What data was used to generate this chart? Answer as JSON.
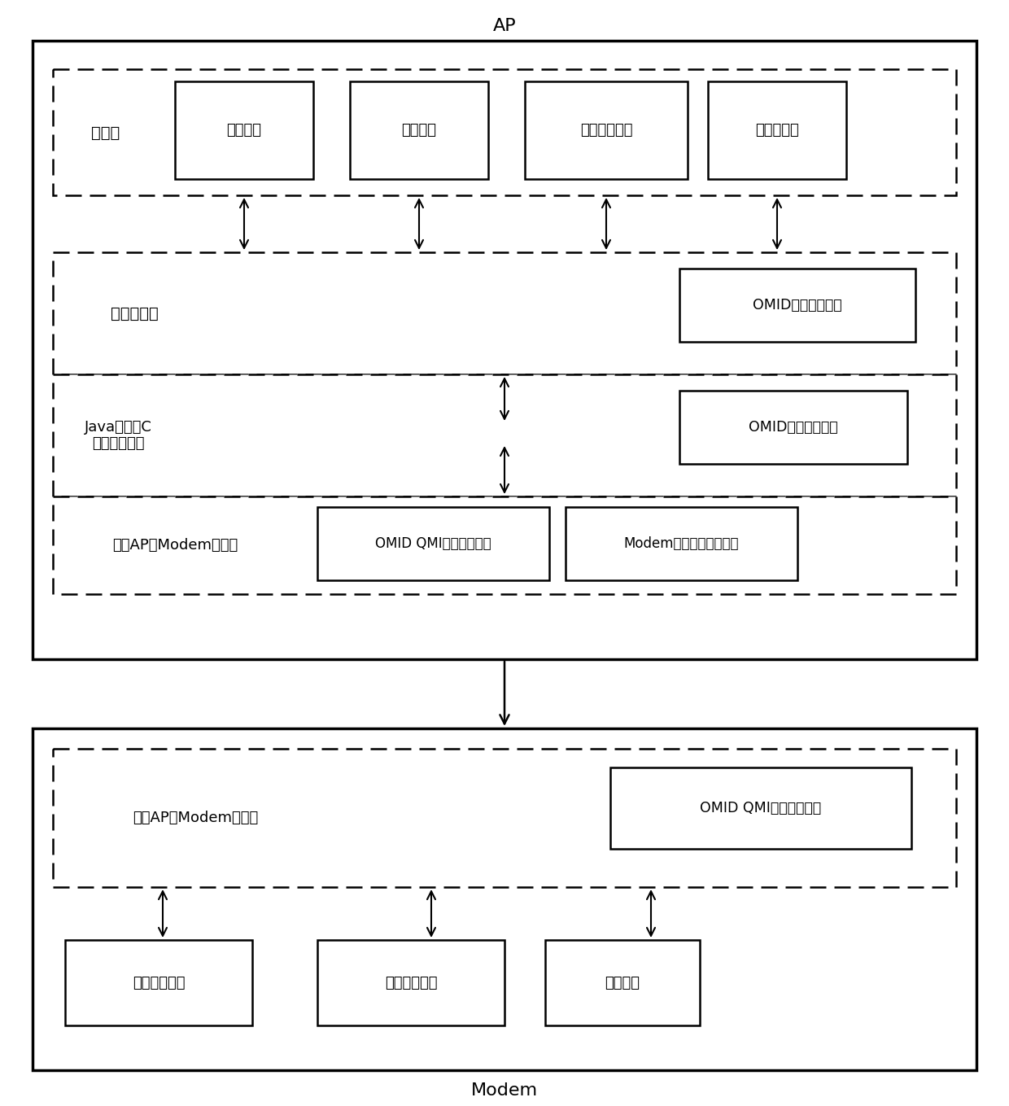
{
  "title_ap": "AP",
  "title_modem": "Modem",
  "app_layer_label": "应用层",
  "app_boxes": [
    "彩信应用",
    "通话应用",
    "客户设置应用",
    "工程师应用"
  ],
  "android_layer_label": "安卓框架层",
  "android_module": "OMID接口透传模块",
  "java_layer_label": "Java语言和C\n语言的转换层",
  "java_module": "OMID接口转换模块",
  "comm1_layer_label": "第一AP和Modem通讯层",
  "comm1_module1": "OMID QMI消息封装模块",
  "comm1_module2": "Modem执行结果解析模块",
  "comm2_layer_label": "第二AP和Modem通讯层",
  "comm2_module": "OMID QMI消息解析模块",
  "modem_boxes": [
    "通话管理模块",
    "网络搜索模块",
    "参数模块"
  ]
}
